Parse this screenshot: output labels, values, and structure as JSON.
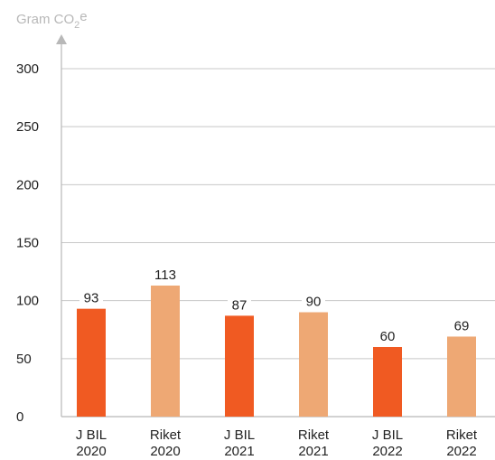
{
  "chart_data": {
    "type": "bar",
    "title": "",
    "ylabel_prefix": "Gram CO",
    "ylabel_subscript": "2",
    "ylabel_suffix": "e",
    "categories": [
      [
        "J BIL",
        "2020"
      ],
      [
        "Riket",
        "2020"
      ],
      [
        "J BIL",
        "2021"
      ],
      [
        "Riket",
        "2021"
      ],
      [
        "J BIL",
        "2022"
      ],
      [
        "Riket",
        "2022"
      ]
    ],
    "values": [
      93,
      113,
      87,
      90,
      60,
      69
    ],
    "value_labels": [
      "93",
      "113",
      "87",
      "90",
      "60",
      "69"
    ],
    "ylim": [
      0,
      300
    ],
    "yticks": [
      0,
      50,
      100,
      150,
      200,
      250,
      300
    ],
    "ytick_labels": [
      "0",
      "50",
      "100",
      "150",
      "200",
      "250",
      "300"
    ],
    "grid": true,
    "legend": "none"
  },
  "colors": {
    "j_bil": "#f05a22",
    "riket": "#eea874",
    "grid": "#c8c8c8",
    "axis": "#b8b8b8"
  },
  "bar_colors": [
    "#f05a22",
    "#eea874",
    "#f05a22",
    "#eea874",
    "#f05a22",
    "#eea874"
  ]
}
